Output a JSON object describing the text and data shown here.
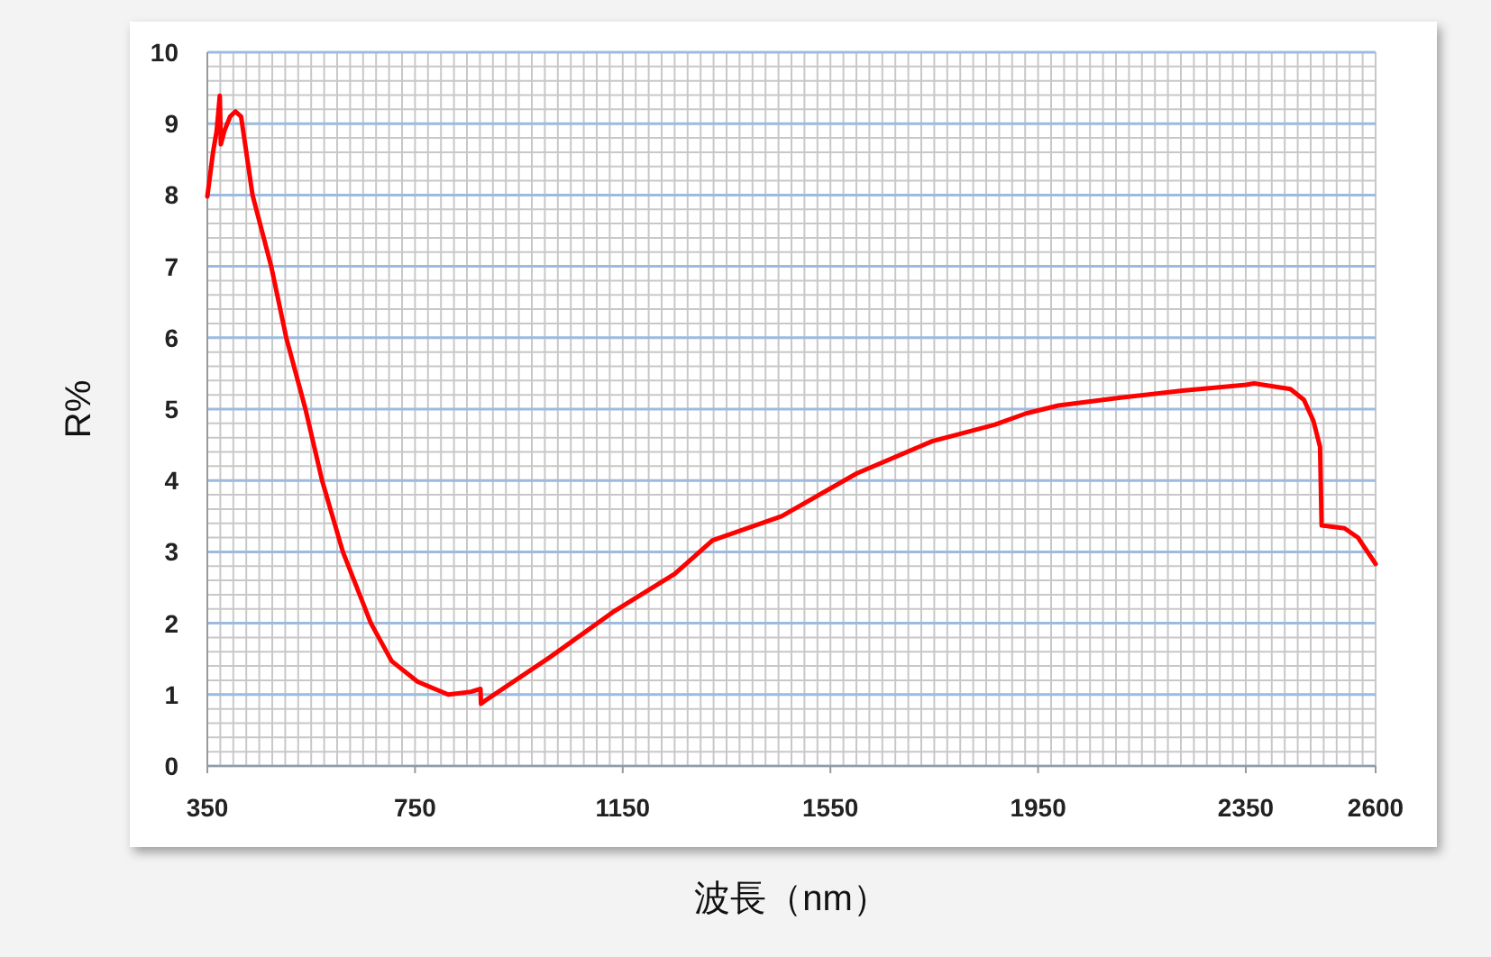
{
  "chart_data": {
    "type": "line",
    "xlabel": "波長（nm）",
    "ylabel": "R%",
    "xlim": [
      350,
      2600
    ],
    "xticks": [
      350,
      750,
      1150,
      1550,
      1950,
      2350,
      2600
    ],
    "ylim": [
      0,
      10
    ],
    "yticks": [
      0,
      1,
      2,
      3,
      4,
      5,
      6,
      7,
      8,
      9,
      10
    ],
    "grid": true,
    "series": [
      {
        "color": "#ff0000",
        "x": [
          350,
          361,
          368,
          374,
          376,
          383,
          394,
          404,
          415,
          422,
          437,
          473,
          502,
          539,
          571,
          611,
          665,
          705,
          755,
          814,
          858,
          876,
          877,
          888,
          1009,
          1130,
          1250,
          1323,
          1456,
          1601,
          1746,
          1866,
          1927,
          1989,
          2109,
          2228,
          2351,
          2366,
          2436,
          2462,
          2480,
          2493,
          2496,
          2540,
          2566,
          2600
        ],
        "values": [
          7.98,
          8.6,
          8.9,
          9.39,
          8.71,
          8.9,
          9.1,
          9.17,
          9.1,
          8.75,
          8.0,
          7.0,
          6.0,
          5.0,
          4.0,
          3.0,
          2.0,
          1.47,
          1.18,
          1.0,
          1.04,
          1.08,
          0.87,
          0.93,
          1.52,
          2.15,
          2.69,
          3.16,
          3.5,
          4.1,
          4.55,
          4.78,
          4.94,
          5.05,
          5.16,
          5.26,
          5.34,
          5.36,
          5.28,
          5.13,
          4.84,
          4.47,
          3.37,
          3.33,
          3.2,
          2.83
        ]
      }
    ]
  }
}
